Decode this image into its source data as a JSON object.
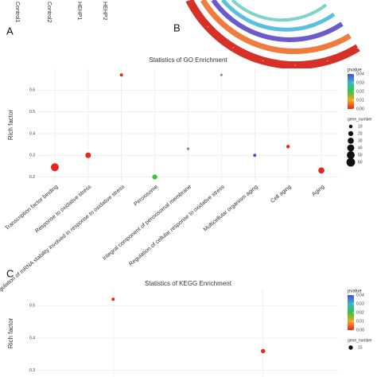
{
  "panel_labels": [
    "A",
    "B",
    "C"
  ],
  "sample_labels": [
    "Control1",
    "Control2",
    "HEHP1",
    "HEHP2"
  ],
  "chart_data": [
    {
      "type": "scatter",
      "title": "Statistics of GO Enrichment",
      "y_label": "Rich factor",
      "categories": [
        "Transcription factor binding",
        "Response to oxidative stress",
        "Regulation of mRNA stability involved in response to oxidative stress",
        "Peroxisome",
        "Integral component of peroxisomal membrane",
        "Regulation of cellular response to oxidative stress",
        "Multicellular organism aging",
        "Cell aging",
        "Aging"
      ],
      "values": [
        0.245,
        0.3,
        0.67,
        0.2,
        0.33,
        0.67,
        0.3,
        0.34,
        0.23
      ],
      "sizes": [
        50,
        25,
        8,
        20,
        6,
        5,
        8,
        10,
        30
      ],
      "colors": [
        "#e8261b",
        "#e8261b",
        "#e8261b",
        "#36c43a",
        "#8a7fd6",
        "#8a7fd6",
        "#4b4bd6",
        "#e8261b",
        "#e8261b"
      ],
      "ylim": [
        0.18,
        0.7
      ],
      "yticks": [
        0.2,
        0.3,
        0.4,
        0.5,
        0.6
      ],
      "grid": true,
      "pvalue_legend": {
        "title": "pvalue",
        "ticks": [
          0.04,
          0.03,
          0.02,
          0.01,
          {
            "value": 0,
            "label": "0.00"
          }
        ],
        "lim": [
          0,
          0.04
        ]
      },
      "size_legend": {
        "title": "gene_number",
        "values": [
          10,
          20,
          30,
          40,
          50,
          60
        ]
      }
    },
    {
      "type": "scatter",
      "title": "Statistics of KEGG Enrichment",
      "y_label": "Rich factor",
      "categories": [
        null,
        null
      ],
      "values": [
        0.52,
        0.36
      ],
      "sizes": [
        8,
        15
      ],
      "colors": [
        "#e8261b",
        "#e8261b"
      ],
      "ylim": [
        0.28,
        0.55
      ],
      "yticks": [
        0.3,
        0.4,
        0.5
      ],
      "grid": true,
      "pvalue_legend": {
        "title": "pvalue",
        "ticks": [
          0.04,
          0.03,
          0.02,
          0.01,
          {
            "value": 0,
            "label": "0.00"
          }
        ],
        "lim": [
          0,
          0.04
        ]
      },
      "size_legend": {
        "title": "gene_number",
        "values": [
          15
        ]
      }
    }
  ]
}
